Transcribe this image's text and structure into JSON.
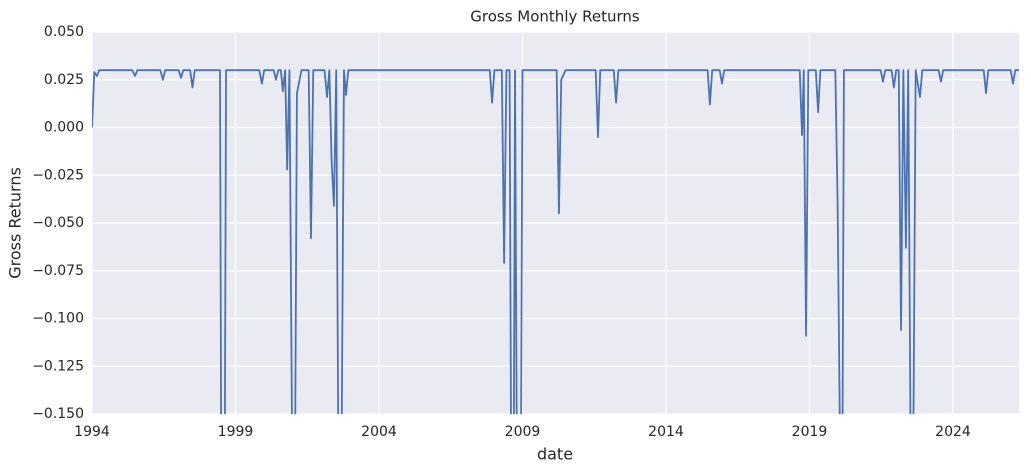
{
  "chart_data": {
    "type": "line",
    "title": "Gross Monthly Returns",
    "x_label": "date",
    "y_label": "Gross Returns",
    "x": [
      1994.0,
      1994.08,
      1994.17,
      1994.25,
      1995.4,
      1995.5,
      1995.58,
      1996.38,
      1996.47,
      1996.55,
      1997.02,
      1997.1,
      1997.18,
      1997.42,
      1997.5,
      1997.58,
      1998.46,
      1998.5,
      1998.63,
      1998.67,
      1999.83,
      1999.92,
      2000.0,
      2000.33,
      2000.41,
      2000.49,
      2000.58,
      2000.65,
      2000.73,
      2000.8,
      2000.88,
      2000.97,
      2001.08,
      2001.14,
      2001.3,
      2001.55,
      2001.63,
      2001.71,
      2002.1,
      2002.19,
      2002.27,
      2002.35,
      2002.43,
      2002.51,
      2002.58,
      2002.7,
      2002.78,
      2002.85,
      2002.93,
      2007.86,
      2007.94,
      2008.02,
      2008.28,
      2008.36,
      2008.44,
      2008.55,
      2008.6,
      2008.7,
      2008.74,
      2008.8,
      2008.95,
      2009.0,
      2010.19,
      2010.27,
      2010.35,
      2010.5,
      2011.55,
      2011.63,
      2011.71,
      2012.18,
      2012.26,
      2012.34,
      2015.45,
      2015.53,
      2015.61,
      2015.87,
      2015.95,
      2016.03,
      2018.66,
      2018.74,
      2018.8,
      2018.88,
      2018.96,
      2019.22,
      2019.3,
      2019.38,
      2019.9,
      2019.98,
      2020.06,
      2020.15,
      2020.2,
      2021.48,
      2021.56,
      2021.64,
      2021.86,
      2021.94,
      2022.02,
      2022.11,
      2022.19,
      2022.27,
      2022.36,
      2022.44,
      2022.52,
      2022.62,
      2022.7,
      2022.85,
      2022.93,
      2023.5,
      2023.58,
      2023.66,
      2025.07,
      2025.15,
      2025.23,
      2026.01,
      2026.09,
      2026.17,
      2026.3
    ],
    "series": [
      {
        "name": "Gross Returns",
        "color": "#4c72b0",
        "values": [
          0.0,
          0.029,
          0.027,
          0.03,
          0.03,
          0.027,
          0.03,
          0.03,
          0.025,
          0.03,
          0.03,
          0.026,
          0.03,
          0.03,
          0.021,
          0.03,
          0.03,
          -0.16,
          -0.16,
          0.03,
          0.03,
          0.023,
          0.03,
          0.03,
          0.025,
          0.03,
          0.03,
          0.019,
          0.03,
          -0.022,
          0.03,
          -0.16,
          -0.16,
          0.018,
          0.03,
          0.03,
          -0.058,
          0.03,
          0.03,
          0.016,
          0.03,
          -0.018,
          -0.041,
          0.03,
          -0.16,
          -0.16,
          0.03,
          0.017,
          0.03,
          0.03,
          0.013,
          0.03,
          0.03,
          -0.071,
          0.03,
          0.03,
          -0.16,
          -0.16,
          0.03,
          -0.16,
          -0.16,
          0.03,
          0.03,
          -0.045,
          0.025,
          0.03,
          0.03,
          -0.005,
          0.03,
          0.03,
          0.013,
          0.03,
          0.03,
          0.012,
          0.03,
          0.03,
          0.023,
          0.03,
          0.03,
          -0.004,
          0.03,
          -0.109,
          0.03,
          0.03,
          0.008,
          0.03,
          0.03,
          -0.04,
          -0.16,
          -0.16,
          0.03,
          0.03,
          0.024,
          0.03,
          0.03,
          0.021,
          0.03,
          0.03,
          -0.106,
          0.03,
          -0.063,
          0.03,
          -0.16,
          -0.16,
          0.03,
          0.016,
          0.03,
          0.03,
          0.024,
          0.03,
          0.03,
          0.018,
          0.03,
          0.03,
          0.023,
          0.03,
          0.03
        ]
      }
    ],
    "xlim": [
      1994,
      2026.3
    ],
    "xticks": [
      1994,
      1999,
      2004,
      2009,
      2014,
      2019,
      2024
    ],
    "ylim": [
      -0.15,
      0.05
    ],
    "yticks": [
      {
        "value": -0.15,
        "label": "−0.150"
      },
      {
        "value": -0.125,
        "label": "−0.125"
      },
      {
        "value": -0.1,
        "label": "−0.100"
      },
      {
        "value": -0.075,
        "label": "−0.075"
      },
      {
        "value": -0.05,
        "label": "−0.050"
      },
      {
        "value": -0.025,
        "label": "−0.025"
      },
      {
        "value": 0,
        "label": "0.000"
      },
      {
        "value": 0.025,
        "label": "0.025"
      },
      {
        "value": 0.05,
        "label": "0.050"
      }
    ],
    "grid": true
  }
}
